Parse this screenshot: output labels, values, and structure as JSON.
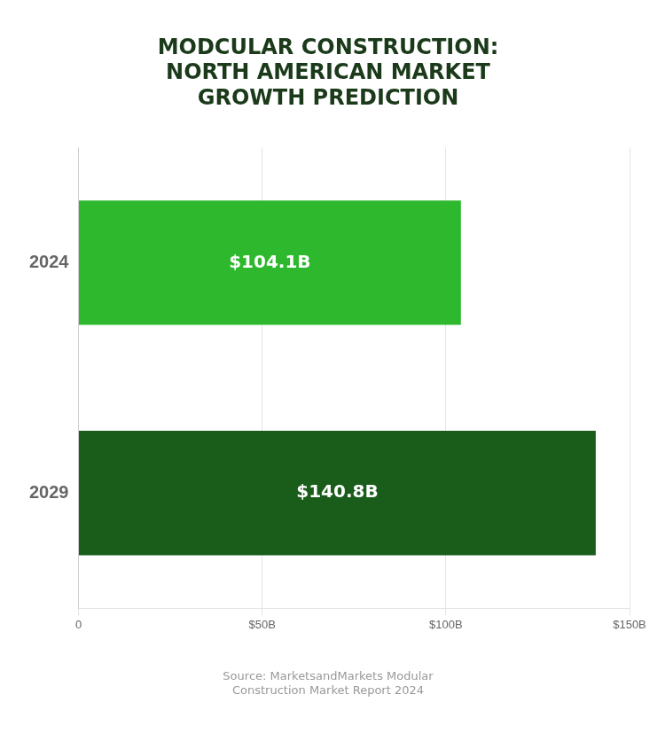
{
  "chart_data": {
    "type": "bar",
    "orientation": "horizontal",
    "title": [
      "MODCULAR CONSTRUCTION:",
      "NORTH AMERICAN MARKET",
      "GROWTH PREDICTION"
    ],
    "annotations": [
      "Source: MarketsandMarkets Modular",
      "Construction Market Report 2024"
    ],
    "categories": [
      "2024",
      "2029"
    ],
    "values": [
      104.1,
      140.8
    ],
    "value_labels": [
      "$104.1B",
      "$140.8B"
    ],
    "colors": [
      "#2db82d",
      "#1a5c1a"
    ],
    "data_labels": true,
    "xlim": [
      0,
      150
    ],
    "xticks": [
      0,
      {
        "value": 50,
        "label": "$50B"
      },
      {
        "value": 100,
        "label": "$100B"
      },
      {
        "value": 150,
        "label": "$150B"
      }
    ],
    "grid": true
  }
}
